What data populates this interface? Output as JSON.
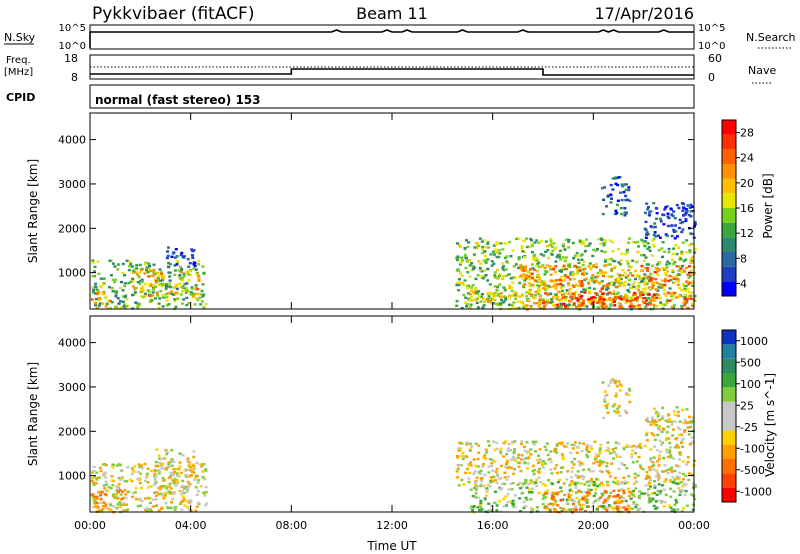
{
  "header": {
    "station": "Pykkvibaer (fitACF)",
    "beam": "Beam 11",
    "date": "17/Apr/2016"
  },
  "strips": {
    "nsky": {
      "label": "N.Sky",
      "tick_top": "10^5",
      "tick_bottom": "10^0",
      "right_label": "N.Search",
      "right_tick_top": "10^5",
      "right_tick_bottom": "10^0"
    },
    "freq": {
      "label_1": "Freq.",
      "label_2": "[MHz]",
      "tick_top": "18",
      "tick_bottom": "8",
      "right_label": "Nave",
      "right_tick_top": "60",
      "right_tick_bottom": "0"
    },
    "cpid": {
      "label": "CPID",
      "text": "normal (fast stereo) 153"
    }
  },
  "chart_data": [
    {
      "type": "heatmap",
      "panel": "power",
      "ylabel": "Slant Range [km]",
      "xlabel": "",
      "x_ticks": [
        "00:00",
        "04:00",
        "08:00",
        "12:00",
        "16:00",
        "20:00",
        "00:00"
      ],
      "y_ticks": [
        1000,
        2000,
        3000,
        4000
      ],
      "ylim": [
        180,
        4600
      ],
      "xlim_hours": [
        0,
        24
      ],
      "colorbar": {
        "label": "Power [dB]",
        "ticks": [
          "4",
          "8",
          "12",
          "16",
          "20",
          "24",
          "28"
        ],
        "colors": [
          "#0000ff",
          "#1e40c0",
          "#2a6aa0",
          "#2e8a6e",
          "#3aa838",
          "#7ad020",
          "#e6e600",
          "#ffc000",
          "#ff9000",
          "#ff6000",
          "#ff3000",
          "#ff0000"
        ]
      },
      "regions": [
        {
          "h0": 0.0,
          "h1": 4.6,
          "r0": 200,
          "r1": 1300,
          "v": 14
        },
        {
          "h0": 1.6,
          "h1": 4.3,
          "r0": 500,
          "r1": 1100,
          "v": 20
        },
        {
          "h0": 0.0,
          "h1": 0.8,
          "r0": 200,
          "r1": 600,
          "v": 22
        },
        {
          "h0": 3.0,
          "h1": 4.2,
          "r0": 1150,
          "r1": 1650,
          "v": 5
        },
        {
          "h0": 14.5,
          "h1": 24.0,
          "r0": 200,
          "r1": 1800,
          "v": 15
        },
        {
          "h0": 17.0,
          "h1": 24.0,
          "r0": 200,
          "r1": 1200,
          "v": 23
        },
        {
          "h0": 18.5,
          "h1": 22.5,
          "r0": 250,
          "r1": 600,
          "v": 27
        },
        {
          "h0": 15.0,
          "h1": 17.5,
          "r0": 350,
          "r1": 700,
          "v": 19
        },
        {
          "h0": 20.3,
          "h1": 21.4,
          "r0": 2300,
          "r1": 3200,
          "v": 8
        },
        {
          "h0": 22.0,
          "h1": 24.0,
          "r0": 1800,
          "r1": 2600,
          "v": 6
        }
      ]
    },
    {
      "type": "heatmap",
      "panel": "velocity",
      "ylabel": "Slant Range [km]",
      "xlabel": "Time UT",
      "x_ticks": [
        "00:00",
        "04:00",
        "08:00",
        "12:00",
        "16:00",
        "20:00",
        "00:00"
      ],
      "y_ticks": [
        1000,
        2000,
        3000,
        4000
      ],
      "ylim": [
        180,
        4600
      ],
      "xlim_hours": [
        0,
        24
      ],
      "colorbar": {
        "label": "Velocity [m s^-1]",
        "ticks": [
          "1000",
          "500",
          "100",
          "25",
          "-25",
          "-100",
          "-500",
          "-1000"
        ],
        "colors": [
          "#1030c0",
          "#2080a0",
          "#2e8a60",
          "#3aa838",
          "#80cc40",
          "#c8c8c8",
          "#c8c8c8",
          "#ffd000",
          "#ffa000",
          "#ff7000",
          "#ff4000",
          "#ff0000"
        ]
      },
      "regions": [
        {
          "h0": 0.0,
          "h1": 4.6,
          "r0": 200,
          "r1": 1300,
          "v": 0
        },
        {
          "h0": 2.5,
          "h1": 4.2,
          "r0": 600,
          "r1": 1650,
          "v": 0
        },
        {
          "h0": 0.0,
          "h1": 1.5,
          "r0": 200,
          "r1": 700,
          "v": -200
        },
        {
          "h0": 14.5,
          "h1": 24.0,
          "r0": 800,
          "r1": 1800,
          "v": 0
        },
        {
          "h0": 15.0,
          "h1": 24.0,
          "r0": 200,
          "r1": 900,
          "v": 150
        },
        {
          "h0": 18.0,
          "h1": 21.5,
          "r0": 200,
          "r1": 700,
          "v": -300
        },
        {
          "h0": 20.3,
          "h1": 21.4,
          "r0": 2300,
          "r1": 3200,
          "v": 0
        },
        {
          "h0": 22.0,
          "h1": 24.0,
          "r0": 1800,
          "r1": 2600,
          "v": 0
        }
      ]
    }
  ]
}
